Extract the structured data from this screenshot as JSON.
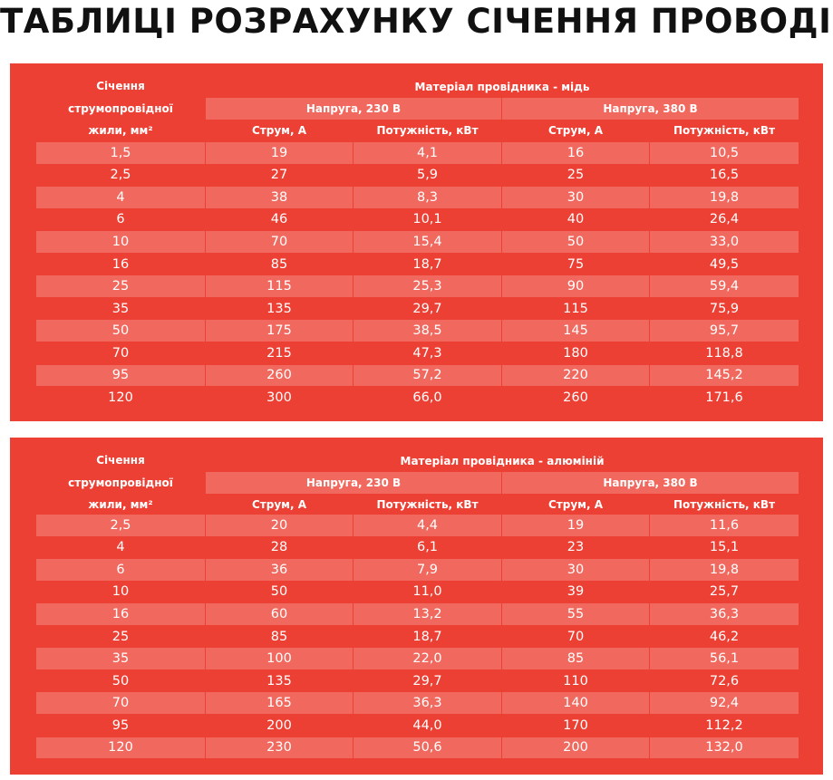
{
  "title": "ТАБЛИЦІ РОЗРАХУНКУ СІЧЕННЯ ПРОВОДІВ",
  "colors": {
    "panel": "#ed4034",
    "stripe": "#f1695e",
    "text": "#ffffff"
  },
  "tables": [
    {
      "section_header": [
        "Січення",
        "струмопровідної",
        "жили, мм²"
      ],
      "material": "Матеріал провідника - мідь",
      "voltage_230": "Напруга, 230 В",
      "voltage_380": "Напруга, 380 В",
      "current": "Струм, А",
      "power": "Потужність, кВт",
      "rows": [
        [
          "1,5",
          "19",
          "4,1",
          "16",
          "10,5"
        ],
        [
          "2,5",
          "27",
          "5,9",
          "25",
          "16,5"
        ],
        [
          "4",
          "38",
          "8,3",
          "30",
          "19,8"
        ],
        [
          "6",
          "46",
          "10,1",
          "40",
          "26,4"
        ],
        [
          "10",
          "70",
          "15,4",
          "50",
          "33,0"
        ],
        [
          "16",
          "85",
          "18,7",
          "75",
          "49,5"
        ],
        [
          "25",
          "115",
          "25,3",
          "90",
          "59,4"
        ],
        [
          "35",
          "135",
          "29,7",
          "115",
          "75,9"
        ],
        [
          "50",
          "175",
          "38,5",
          "145",
          "95,7"
        ],
        [
          "70",
          "215",
          "47,3",
          "180",
          "118,8"
        ],
        [
          "95",
          "260",
          "57,2",
          "220",
          "145,2"
        ],
        [
          "120",
          "300",
          "66,0",
          "260",
          "171,6"
        ]
      ]
    },
    {
      "section_header": [
        "Січення",
        "струмопровідної",
        "жили, мм²"
      ],
      "material": "Матеріал провідника - алюміній",
      "voltage_230": "Напруга, 230 В",
      "voltage_380": "Напруга, 380 В",
      "current": "Струм, А",
      "power": "Потужність, кВт",
      "rows": [
        [
          "2,5",
          "20",
          "4,4",
          "19",
          "11,6"
        ],
        [
          "4",
          "28",
          "6,1",
          "23",
          "15,1"
        ],
        [
          "6",
          "36",
          "7,9",
          "30",
          "19,8"
        ],
        [
          "10",
          "50",
          "11,0",
          "39",
          "25,7"
        ],
        [
          "16",
          "60",
          "13,2",
          "55",
          "36,3"
        ],
        [
          "25",
          "85",
          "18,7",
          "70",
          "46,2"
        ],
        [
          "35",
          "100",
          "22,0",
          "85",
          "56,1"
        ],
        [
          "50",
          "135",
          "29,7",
          "110",
          "72,6"
        ],
        [
          "70",
          "165",
          "36,3",
          "140",
          "92,4"
        ],
        [
          "95",
          "200",
          "44,0",
          "170",
          "112,2"
        ],
        [
          "120",
          "230",
          "50,6",
          "200",
          "132,0"
        ]
      ]
    }
  ]
}
